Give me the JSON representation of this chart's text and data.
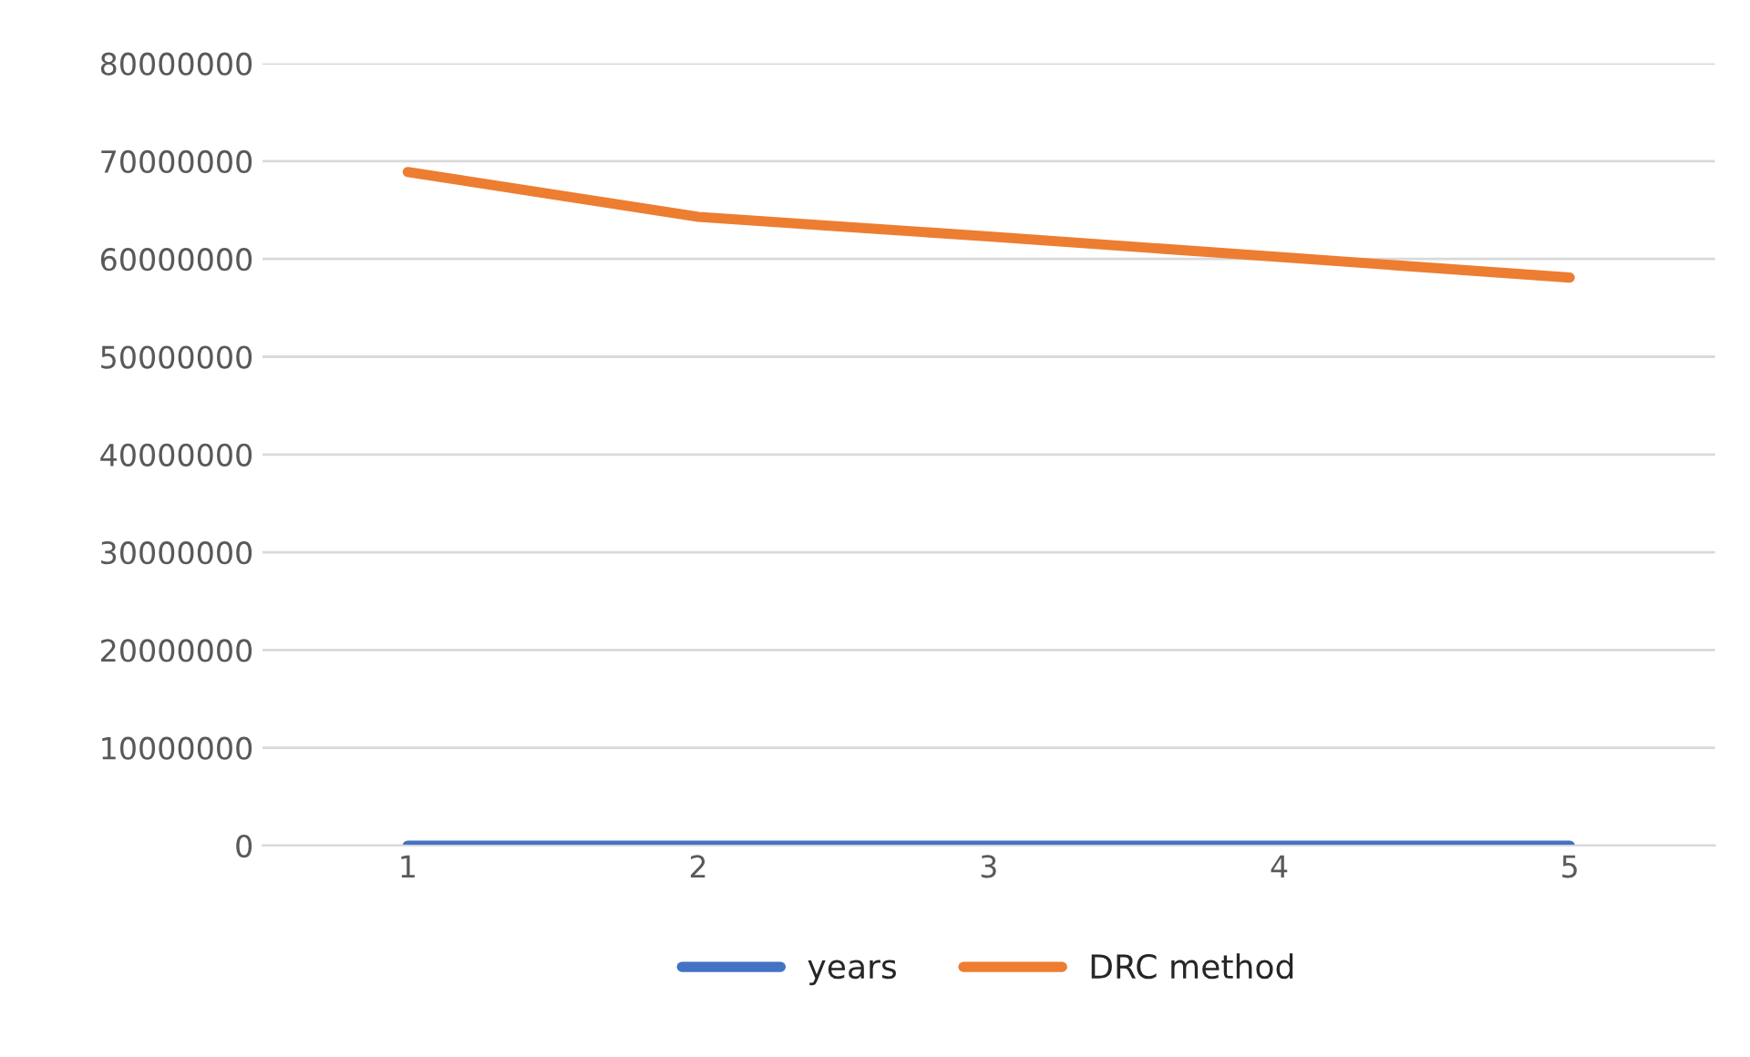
{
  "chart_data": {
    "type": "line",
    "categories": [
      "1",
      "2",
      "3",
      "4",
      "5"
    ],
    "series": [
      {
        "name": "years",
        "color": "#4472c4",
        "values": [
          0,
          0,
          0,
          0,
          0
        ]
      },
      {
        "name": "DRC method",
        "color": "#ed7d31",
        "values": [
          68900000,
          64300000,
          62300000,
          60200000,
          58100000
        ]
      }
    ],
    "ylim": [
      0,
      80000000
    ],
    "yticks": [
      0,
      10000000,
      20000000,
      30000000,
      40000000,
      50000000,
      60000000,
      70000000,
      80000000
    ],
    "grid": "y",
    "legend": "bottom",
    "marker": "none",
    "line_style": "solid"
  }
}
